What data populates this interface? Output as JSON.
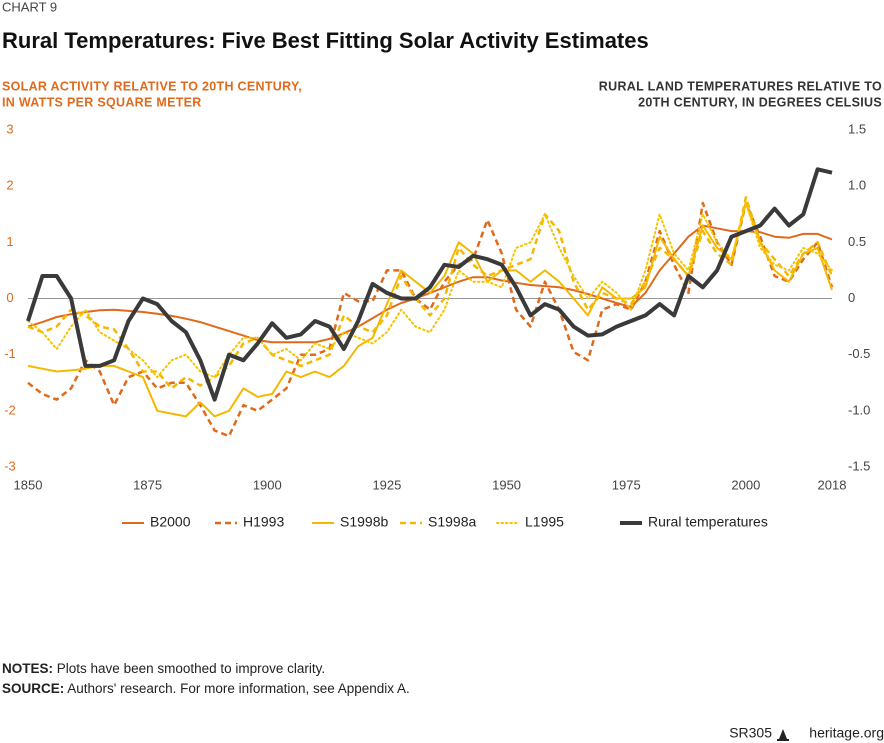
{
  "chart_data": {
    "type": "line",
    "kicker": "CHART 9",
    "title": "Rural Temperatures: Five Best Fitting Solar Activity Estimates",
    "y_label": [
      "SOLAR ACTIVITY RELATIVE TO 20TH CENTURY,",
      "IN WATTS PER SQUARE METER"
    ],
    "y2_label": [
      "RURAL LAND TEMPERATURES RELATIVE TO",
      "20TH CENTURY, IN DEGREES CELSIUS"
    ],
    "x": [
      1850,
      1853,
      1856,
      1859,
      1862,
      1865,
      1868,
      1871,
      1874,
      1877,
      1880,
      1883,
      1886,
      1889,
      1892,
      1895,
      1898,
      1901,
      1904,
      1907,
      1910,
      1913,
      1916,
      1919,
      1922,
      1925,
      1928,
      1931,
      1934,
      1937,
      1940,
      1943,
      1946,
      1949,
      1952,
      1955,
      1958,
      1961,
      1964,
      1967,
      1970,
      1973,
      1976,
      1979,
      1982,
      1985,
      1988,
      1991,
      1994,
      1997,
      2000,
      2003,
      2006,
      2009,
      2012,
      2015,
      2018
    ],
    "xlim": [
      1850,
      2018
    ],
    "xticks": [
      1850,
      1875,
      1900,
      1925,
      1950,
      1975,
      2000,
      2018
    ],
    "ylim": [
      -3,
      3
    ],
    "yticks": [
      -3,
      -2,
      -1,
      0,
      1,
      2,
      3
    ],
    "y2lim": [
      -1.5,
      1.5
    ],
    "y2ticks": [
      -1.5,
      {
        "value": -1,
        "label": "-1.0"
      },
      -0.5,
      0,
      0.5,
      {
        "value": 1,
        "label": "1.0"
      },
      1.5
    ],
    "zero_line": true,
    "series": [
      {
        "name": "B2000",
        "color": "#e06a1c",
        "dash": "solid",
        "values": [
          -0.5,
          -0.42,
          -0.33,
          -0.28,
          -0.24,
          -0.21,
          -0.2,
          -0.22,
          -0.24,
          -0.27,
          -0.31,
          -0.36,
          -0.42,
          -0.5,
          -0.58,
          -0.66,
          -0.74,
          -0.78,
          -0.78,
          -0.78,
          -0.78,
          -0.72,
          -0.62,
          -0.5,
          -0.35,
          -0.2,
          -0.08,
          0,
          0.1,
          0.2,
          0.3,
          0.38,
          0.38,
          0.32,
          0.28,
          0.24,
          0.22,
          0.2,
          0.15,
          0.08,
          0,
          -0.08,
          -0.15,
          0.1,
          0.5,
          0.8,
          1.1,
          1.3,
          1.25,
          1.2,
          1.2,
          1.18,
          1.1,
          1.08,
          1.15,
          1.15,
          1.05
        ]
      },
      {
        "name": "H1993",
        "color": "#e06a1c",
        "dash": "dashed",
        "values": [
          -1.5,
          -1.7,
          -1.8,
          -1.6,
          -1.1,
          -1.3,
          -1.9,
          -1.4,
          -1.3,
          -1.6,
          -1.5,
          -1.5,
          -1.9,
          -2.35,
          -2.45,
          -1.9,
          -2,
          -1.8,
          -1.6,
          -1,
          -1,
          -0.9,
          0.1,
          -0.05,
          -0.05,
          0.5,
          0.5,
          0,
          -0.2,
          0.3,
          0.6,
          0.7,
          1.4,
          0.8,
          -0.2,
          -0.5,
          0.3,
          -0.2,
          -0.95,
          -1.1,
          -0.2,
          -0.1,
          -0.2,
          0.3,
          1.2,
          0.6,
          0.1,
          1.7,
          1,
          0.6,
          1.7,
          1.1,
          0.4,
          0.3,
          0.7,
          1,
          0.2
        ]
      },
      {
        "name": "S1998b",
        "color": "#f5b800",
        "dash": "solid",
        "values": [
          -1.2,
          -1.25,
          -1.3,
          -1.28,
          -1.25,
          -1.2,
          -1.2,
          -1.3,
          -1.4,
          -2,
          -2.05,
          -2.1,
          -1.85,
          -2.1,
          -2,
          -1.6,
          -1.75,
          -1.7,
          -1.3,
          -1.4,
          -1.3,
          -1.4,
          -1.2,
          -0.85,
          -0.7,
          -0.1,
          0.5,
          0.3,
          0.1,
          0.4,
          1,
          0.8,
          0.3,
          0.5,
          0.5,
          0.3,
          0.5,
          0.3,
          0,
          -0.3,
          0.2,
          0,
          0,
          0.2,
          1.1,
          0.7,
          0.4,
          1.3,
          0.9,
          0.7,
          1.7,
          1,
          0.5,
          0.3,
          0.8,
          0.9,
          0.15
        ]
      },
      {
        "name": "S1998a",
        "color": "#f5b800",
        "dash": "dashed",
        "values": [
          -0.5,
          -0.6,
          -0.5,
          -0.2,
          -0.3,
          -0.5,
          -0.55,
          -0.9,
          -1.3,
          -1.3,
          -1.6,
          -1.4,
          -1.55,
          -1.4,
          -1.2,
          -0.8,
          -0.7,
          -1,
          -1.1,
          -1.2,
          -1.1,
          -1,
          -0.3,
          -0.5,
          -0.6,
          -0.3,
          0.4,
          0,
          -0.3,
          0,
          0.9,
          0.6,
          0.4,
          0.5,
          0.6,
          0.7,
          1.5,
          1.2,
          0.3,
          -0.2,
          0.1,
          0,
          -0.1,
          0.3,
          0.9,
          0.7,
          0.4,
          1.2,
          0.8,
          0.6,
          1.8,
          1,
          0.7,
          0.4,
          0.8,
          1,
          0.4
        ]
      },
      {
        "name": "L1995",
        "color": "#f5c400",
        "dash": "dotted",
        "values": [
          -0.4,
          -0.6,
          -0.9,
          -0.5,
          -0.2,
          -0.6,
          -0.75,
          -0.9,
          -1.1,
          -1.4,
          -1.1,
          -1,
          -1.3,
          -1.4,
          -1,
          -0.7,
          -0.7,
          -1,
          -0.9,
          -1.1,
          -0.8,
          -0.9,
          -0.6,
          -0.7,
          -0.8,
          -0.6,
          -0.2,
          -0.5,
          -0.6,
          -0.2,
          0.5,
          0.3,
          0.3,
          0.2,
          0.9,
          1,
          1.5,
          0.9,
          0.4,
          0,
          0.3,
          0.1,
          -0.2,
          0.5,
          1.5,
          0.8,
          0.5,
          1.5,
          1,
          0.7,
          1.7,
          0.9,
          0.6,
          0.5,
          0.9,
          0.8,
          0.5
        ]
      },
      {
        "name": "Rural temperatures",
        "color": "#3a3a3a",
        "dash": "thick",
        "axis": "y2",
        "values": [
          -0.2,
          0.2,
          0.2,
          0,
          -0.6,
          -0.6,
          -0.55,
          -0.2,
          0,
          -0.05,
          -0.2,
          -0.3,
          -0.55,
          -0.9,
          -0.5,
          -0.55,
          -0.4,
          -0.22,
          -0.35,
          -0.32,
          -0.2,
          -0.25,
          -0.45,
          -0.2,
          0.13,
          0.05,
          0,
          0,
          0.1,
          0.3,
          0.28,
          0.38,
          0.35,
          0.3,
          0.1,
          -0.15,
          -0.05,
          -0.1,
          -0.25,
          -0.33,
          -0.32,
          -0.25,
          -0.2,
          -0.15,
          -0.05,
          -0.15,
          0.2,
          0.1,
          0.25,
          0.55,
          0.6,
          0.65,
          0.8,
          0.65,
          0.75,
          1.15,
          1.12
        ]
      }
    ],
    "notes": {
      "label": "NOTES:",
      "text": "Plots have been smoothed to improve clarity."
    },
    "source": {
      "label": "SOURCE:",
      "text": "Authors' research. For more information, see Appendix A."
    },
    "report": "SR305",
    "site": "heritage.org"
  }
}
